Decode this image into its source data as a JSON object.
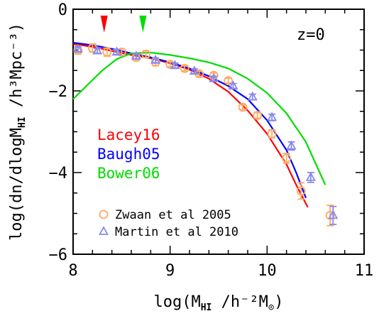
{
  "chart_data": {
    "type": "line",
    "annotation": "z=0",
    "ylabel": "log(dn/dlogM",
    "ylabel_sub": "HI",
    "ylabel_tail": " /h³Mpc⁻³)",
    "xlabel_prefix": "log(M",
    "xlabel_sub": "HI",
    "xlabel_mid": " /h⁻²M",
    "xlabel_sun": "⊙",
    "xlabel_tail": ")",
    "xlim": [
      8,
      11
    ],
    "ylim": [
      -6,
      0
    ],
    "xticks": [
      8,
      9,
      10,
      11
    ],
    "yticks": [
      0,
      -2,
      -4,
      -6
    ],
    "ytick_labels": [
      "0",
      "−2",
      "−4",
      "−6"
    ],
    "grid": false,
    "colors": {
      "Lacey16": "#ff0000",
      "Baugh05": "#0000ff",
      "Bower06": "#00dd00",
      "zwaan": "#ffaa60",
      "martin": "#8888ee"
    },
    "series": [
      {
        "name": "Lacey16",
        "color": "#ff0000",
        "x": [
          8.0,
          8.2,
          8.4,
          8.6,
          8.8,
          9.0,
          9.2,
          9.4,
          9.6,
          9.8,
          10.0,
          10.2,
          10.3,
          10.42
        ],
        "y": [
          -0.85,
          -0.92,
          -1.02,
          -1.12,
          -1.2,
          -1.32,
          -1.48,
          -1.7,
          -2.02,
          -2.48,
          -3.05,
          -3.8,
          -4.3,
          -4.85
        ]
      },
      {
        "name": "Baugh05",
        "color": "#0000ff",
        "x": [
          8.0,
          8.2,
          8.4,
          8.6,
          8.8,
          9.0,
          9.2,
          9.4,
          9.6,
          9.8,
          10.0,
          10.2,
          10.3,
          10.4
        ],
        "y": [
          -0.82,
          -0.88,
          -0.97,
          -1.08,
          -1.18,
          -1.3,
          -1.45,
          -1.64,
          -1.88,
          -2.2,
          -2.72,
          -3.45,
          -4.0,
          -4.62
        ]
      },
      {
        "name": "Bower06",
        "color": "#00dd00",
        "x": [
          8.0,
          8.15,
          8.3,
          8.45,
          8.6,
          8.8,
          9.0,
          9.2,
          9.4,
          9.6,
          9.8,
          10.0,
          10.2,
          10.4,
          10.6
        ],
        "y": [
          -2.2,
          -1.85,
          -1.5,
          -1.22,
          -1.08,
          -1.06,
          -1.12,
          -1.2,
          -1.3,
          -1.45,
          -1.7,
          -2.05,
          -2.55,
          -3.25,
          -4.3
        ]
      }
    ],
    "points": [
      {
        "name": "Zwaan et al 2005",
        "marker": "circle",
        "color": "#ffaa60",
        "x": [
          8.05,
          8.2,
          8.35,
          8.5,
          8.65,
          8.75,
          8.85,
          9.0,
          9.15,
          9.3,
          9.45,
          9.6,
          9.75,
          9.9,
          10.05,
          10.2,
          10.35,
          10.65
        ],
        "y": [
          -1.0,
          -0.95,
          -1.05,
          -1.05,
          -1.18,
          -1.1,
          -1.3,
          -1.35,
          -1.45,
          -1.58,
          -1.62,
          -1.75,
          -2.4,
          -2.6,
          -3.05,
          -3.65,
          -4.45,
          -5.05
        ],
        "yerr": [
          0.1,
          0.1,
          0.1,
          0.08,
          0.08,
          0.08,
          0.08,
          0.06,
          0.06,
          0.06,
          0.06,
          0.06,
          0.06,
          0.07,
          0.1,
          0.12,
          0.2,
          0.25
        ]
      },
      {
        "name": "Martin et al 2010",
        "marker": "triangle",
        "color": "#8888ee",
        "x": [
          8.05,
          8.25,
          8.45,
          8.65,
          8.85,
          9.05,
          9.25,
          9.45,
          9.65,
          9.85,
          10.05,
          10.25,
          10.45,
          10.68
        ],
        "y": [
          -0.98,
          -1.02,
          -1.05,
          -1.15,
          -1.25,
          -1.38,
          -1.52,
          -1.7,
          -1.88,
          -2.15,
          -2.65,
          -3.35,
          -4.12,
          -5.05
        ],
        "yerr": [
          0.06,
          0.06,
          0.06,
          0.06,
          0.06,
          0.06,
          0.06,
          0.06,
          0.06,
          0.07,
          0.08,
          0.1,
          0.12,
          0.22
        ]
      }
    ],
    "arrows": [
      {
        "x": 8.32,
        "color": "#ff0000"
      },
      {
        "x": 8.72,
        "color": "#00dd00"
      }
    ],
    "legend_lines": [
      "Lacey16",
      "Baugh05",
      "Bower06"
    ],
    "legend_points": [
      "Zwaan et al 2005",
      "Martin et al 2010"
    ]
  }
}
